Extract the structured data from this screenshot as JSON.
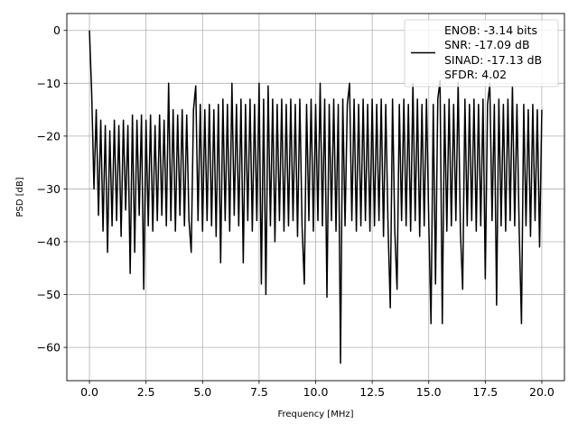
{
  "chart_data": {
    "type": "line",
    "title": "",
    "xlabel": "Frequency [MHz]",
    "ylabel": "PSD [dB]",
    "xlim": [
      -1.0,
      21.0
    ],
    "ylim": [
      -66.3,
      3.2
    ],
    "grid": true,
    "legend_placement": "upper right",
    "line_color": "#000000",
    "grid_color": "#b0b0b0",
    "xticks": [
      0,
      2.5,
      5,
      7.5,
      10,
      12.5,
      15,
      17.5,
      20
    ],
    "xtick_labels": [
      "0.0",
      "2.5",
      "5.0",
      "7.5",
      "10.0",
      "12.5",
      "15.0",
      "17.5",
      "20.0"
    ],
    "yticks": [
      0,
      -10,
      -20,
      -30,
      -40,
      -50,
      -60
    ],
    "ytick_labels": [
      "0",
      "−10",
      "−20",
      "−30",
      "−40",
      "−50",
      "−60"
    ],
    "legend": [
      "ENOB: -3.14 bits",
      "SNR: -17.09 dB",
      "SINAD: -17.13 dB",
      "SFDR: 4.02"
    ],
    "series": [
      {
        "freq_mhz_start": 0,
        "freq_mhz_end": 20,
        "psd_db": [
          0,
          -12,
          -30,
          -15,
          -35,
          -17,
          -38,
          -18,
          -42,
          -19,
          -37,
          -17,
          -36,
          -18,
          -39,
          -17,
          -34,
          -18,
          -46,
          -16,
          -42,
          -17,
          -35,
          -16,
          -49,
          -17,
          -37,
          -16,
          -38,
          -18,
          -36,
          -16,
          -35,
          -17,
          -37,
          -10,
          -36,
          -15,
          -38,
          -16,
          -35,
          -15,
          -37,
          -16,
          -36,
          -42,
          -15,
          -10.5,
          -36,
          -14,
          -38,
          -15,
          -36,
          -14,
          -37,
          -15,
          -39,
          -14,
          -44,
          -13,
          -36,
          -14,
          -38,
          -10,
          -35,
          -14,
          -37,
          -13,
          -44,
          -14,
          -36,
          -13,
          -38,
          -14,
          -36,
          -10,
          -48,
          -13,
          -50,
          -10.5,
          -37,
          -13,
          -40,
          -14,
          -36,
          -13,
          -38,
          -14,
          -37,
          -13,
          -36,
          -14,
          -39,
          -13,
          -37,
          -48,
          -14,
          -36,
          -13,
          -38,
          -14,
          -36,
          -10,
          -37,
          -13,
          -50.5,
          -14,
          -36,
          -13,
          -38,
          -14,
          -63,
          -13,
          -37,
          -14,
          -10,
          -36,
          -13,
          -38,
          -14,
          -37,
          -13,
          -36,
          -14,
          -38,
          -13,
          -37,
          -14,
          -36,
          -13,
          -39,
          -14,
          -37,
          -52.5,
          -13,
          -38,
          -49,
          -14,
          -36,
          -13,
          -37,
          -14,
          -38,
          -10,
          -36,
          -13,
          -39,
          -14,
          -37,
          -13,
          -36,
          -55.5,
          -14,
          -48,
          -13,
          -9.5,
          -55.5,
          -14,
          -38,
          -13,
          -37,
          -14,
          -36,
          -9.8,
          -38,
          -49,
          -13,
          -37,
          -14,
          -36,
          -13,
          -38,
          -14,
          -37,
          -13,
          -47,
          -14,
          -10,
          -36,
          -14,
          -52,
          -13,
          -37,
          -14,
          -38,
          -13,
          -36,
          -10.5,
          -37,
          -14,
          -38,
          -55.5,
          -14,
          -37,
          -15,
          -39,
          -14,
          -36,
          -15,
          -41,
          -15
        ]
      }
    ]
  }
}
